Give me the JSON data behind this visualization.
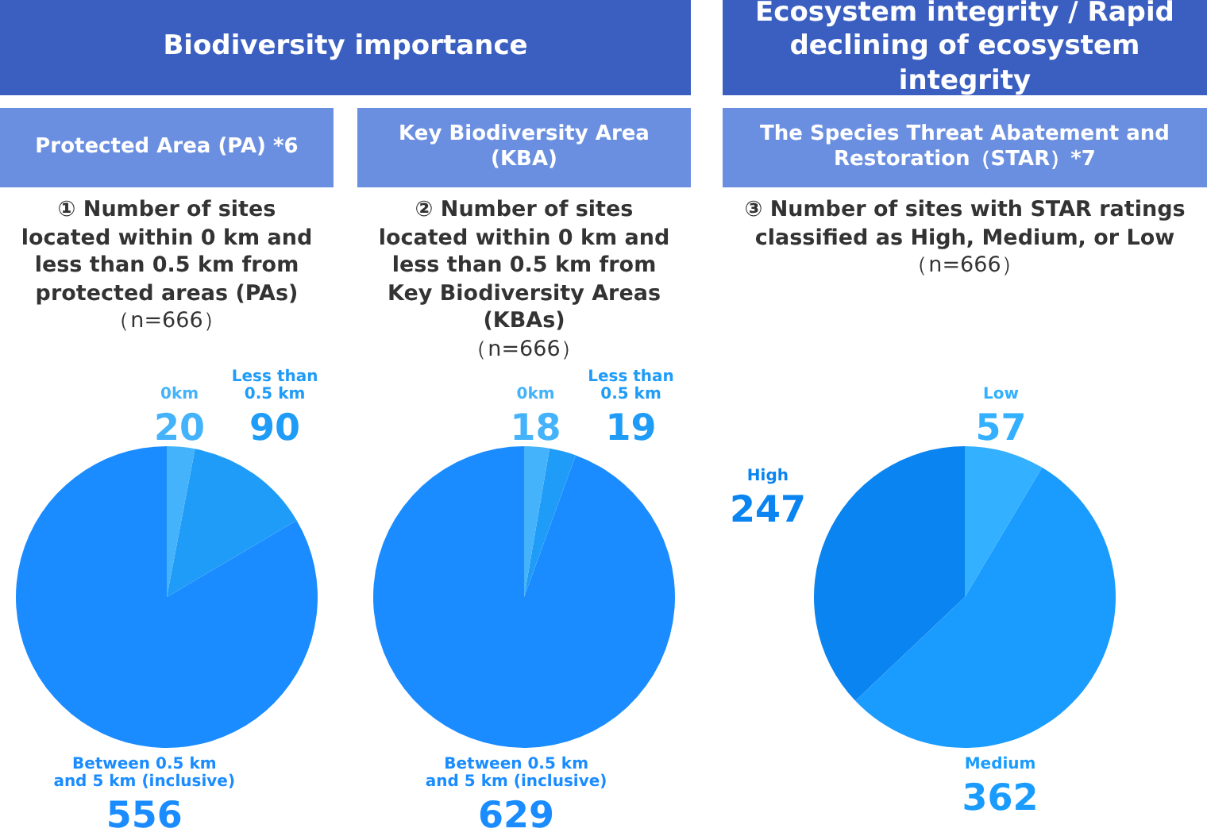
{
  "chart_data": [
    {
      "type": "pie",
      "title": "① Number of sites located within 0 km and less than 0.5 km from protected areas (PAs)",
      "subtitle": "（n=666）",
      "annotations": [
        "Biodiversity importance",
        "Protected Area (PA) *6"
      ],
      "categories": [
        "0km",
        "Less than 0.5 km",
        "Between 0.5 km and 5 km (inclusive)"
      ],
      "values": [
        20,
        90,
        556
      ],
      "colors": [
        "#45b3fb",
        "#1f9cf7",
        "#1a8cff"
      ],
      "data_labels": true,
      "legend": false
    },
    {
      "type": "pie",
      "title": "② Number of sites located within 0 km and less than 0.5 km from Key Biodiversity Areas (KBAs)",
      "subtitle": "（n=666）",
      "annotations": [
        "Key Biodiversity Area (KBA)"
      ],
      "categories": [
        "0km",
        "Less than 0.5 km",
        "Between 0.5 km and 5 km (inclusive)"
      ],
      "values": [
        18,
        19,
        629
      ],
      "colors": [
        "#45b3fb",
        "#1f9cf7",
        "#1a8cff"
      ],
      "data_labels": true,
      "legend": false
    },
    {
      "type": "pie",
      "title": "③ Number of sites with STAR ratings classified as High, Medium, or Low",
      "subtitle": "（n=666）",
      "annotations": [
        "Ecosystem integrity / Rapid declining of ecosystem integrity",
        "The Species Threat Abatement and Restoration（STAR）*7"
      ],
      "categories": [
        "Low",
        "Medium",
        "High"
      ],
      "values": [
        57,
        362,
        247
      ],
      "colors": [
        "#33b0ff",
        "#1a9cff",
        "#0a84f0"
      ],
      "data_labels": true,
      "legend": false
    }
  ]
}
